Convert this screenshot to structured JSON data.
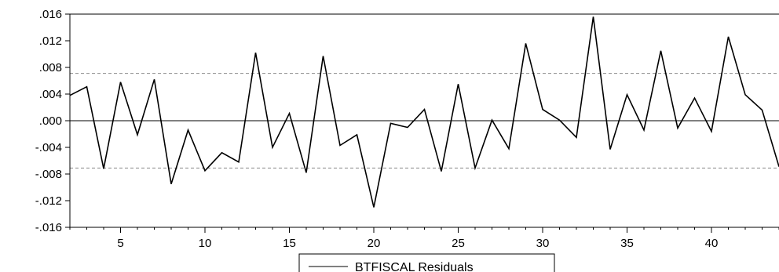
{
  "chart_data": {
    "type": "line",
    "title": "",
    "xlabel": "",
    "ylabel": "",
    "xlim": [
      2,
      44
    ],
    "ylim": [
      -0.016,
      0.016
    ],
    "x_ticks": [
      5,
      10,
      15,
      20,
      25,
      30,
      35,
      40
    ],
    "x_tick_labels": [
      "5",
      "10",
      "15",
      "20",
      "25",
      "30",
      "35",
      "40"
    ],
    "y_ticks": [
      0.016,
      0.012,
      0.008,
      0.004,
      0.0,
      -0.004,
      -0.008,
      -0.012,
      -0.016
    ],
    "y_tick_labels": [
      ".016",
      ".012",
      ".008",
      ".004",
      ".000",
      "-.004",
      "-.008",
      "-.012",
      "-.016"
    ],
    "reference_lines": [
      {
        "y": 0.0,
        "style": "solid"
      },
      {
        "y": 0.0071,
        "style": "dashed"
      },
      {
        "y": -0.0071,
        "style": "dashed"
      }
    ],
    "grid": false,
    "legend_position": "bottom-center",
    "series": [
      {
        "name": "BTFISCAL Residuals",
        "color": "#000000",
        "x": [
          2,
          3,
          4,
          5,
          6,
          7,
          8,
          9,
          10,
          11,
          12,
          13,
          14,
          15,
          16,
          17,
          18,
          19,
          20,
          21,
          22,
          23,
          24,
          25,
          26,
          27,
          28,
          29,
          30,
          31,
          32,
          33,
          34,
          35,
          36,
          37,
          38,
          39,
          40,
          41,
          42,
          43,
          44
        ],
        "values": [
          0.0038,
          0.0051,
          -0.0072,
          0.0058,
          -0.0021,
          0.0062,
          -0.0095,
          -0.0014,
          -0.0075,
          -0.0048,
          -0.0062,
          0.0102,
          -0.004,
          0.0011,
          -0.0078,
          0.0097,
          -0.0037,
          -0.0021,
          -0.013,
          -0.0004,
          -0.001,
          0.0017,
          -0.0076,
          0.0055,
          -0.0071,
          0.0001,
          -0.0042,
          0.0116,
          0.0017,
          0.0001,
          -0.0025,
          0.0156,
          -0.0043,
          0.0039,
          -0.0014,
          0.0105,
          -0.0011,
          0.0034,
          -0.0016,
          0.0126,
          0.0039,
          0.0016,
          -0.0069
        ]
      }
    ]
  }
}
